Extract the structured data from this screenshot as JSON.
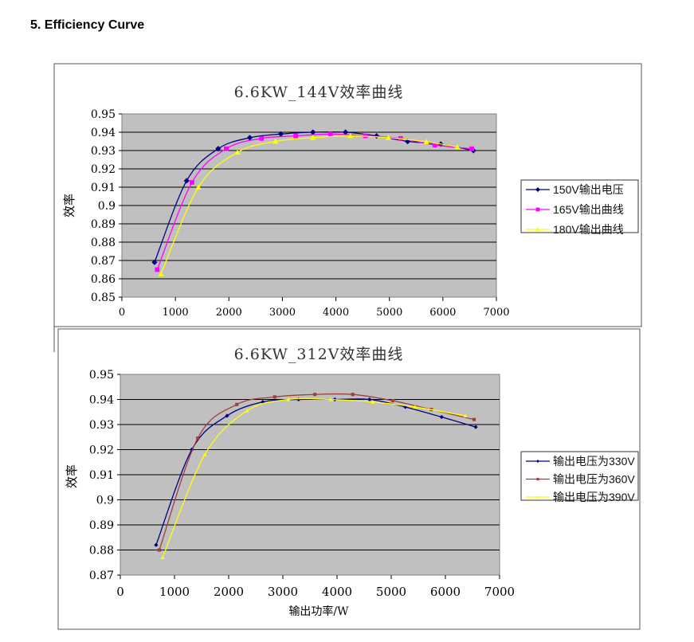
{
  "heading": "5. Efficiency Curve",
  "chart_data": [
    {
      "type": "line",
      "title": "6.6KW_144V效率曲线",
      "xlabel": "",
      "ylabel": "效率",
      "xlim": [
        0,
        7000
      ],
      "ylim": [
        0.85,
        0.95
      ],
      "xticks": [
        "0",
        "1000",
        "2000",
        "3000",
        "4000",
        "5000",
        "6000",
        "7000"
      ],
      "yticks": [
        "0.85",
        "0.86",
        "0.87",
        "0.88",
        "0.89",
        "0.9",
        "0.91",
        "0.92",
        "0.93",
        "0.94",
        "0.95"
      ],
      "grid": true,
      "legend_position": "right",
      "series": [
        {
          "name": "150V输出电压",
          "color": "#000080",
          "marker": "diamond",
          "x": [
            610,
            1210,
            1800,
            2390,
            2970,
            3570,
            4180,
            4760,
            5340,
            5960,
            6570
          ],
          "y": [
            0.869,
            0.9135,
            0.931,
            0.937,
            0.939,
            0.94,
            0.94,
            0.938,
            0.935,
            0.9335,
            0.93
          ]
        },
        {
          "name": "165V输出曲线",
          "color": "#ff00ff",
          "marker": "square",
          "x": [
            660,
            1310,
            1950,
            2610,
            3250,
            3900,
            4550,
            5210,
            5850,
            6540
          ],
          "y": [
            0.865,
            0.9126,
            0.931,
            0.9366,
            0.938,
            0.939,
            0.938,
            0.9366,
            0.933,
            0.931
          ]
        },
        {
          "name": "180V输出曲线",
          "color": "#ffff00",
          "marker": "triangle",
          "x": [
            730,
            1430,
            2160,
            2870,
            3570,
            4270,
            4980,
            5690,
            6270
          ],
          "y": [
            0.8626,
            0.91,
            0.929,
            0.935,
            0.937,
            0.938,
            0.937,
            0.9348,
            0.932
          ]
        }
      ]
    },
    {
      "type": "line",
      "title": "6.6KW_312V效率曲线",
      "xlabel": "输出功率/W",
      "ylabel": "效率",
      "xlim": [
        0,
        7000
      ],
      "ylim": [
        0.87,
        0.95
      ],
      "xticks": [
        "0",
        "1000",
        "2000",
        "3000",
        "4000",
        "5000",
        "6000",
        "7000"
      ],
      "yticks": [
        "0.87",
        "0.88",
        "0.89",
        "0.9",
        "0.91",
        "0.92",
        "0.93",
        "0.94",
        "0.95"
      ],
      "grid": true,
      "legend_position": "right",
      "series": [
        {
          "name": "输出电压为330V",
          "color": "#000080",
          "marker": "diamond",
          "x": [
            660,
            1320,
            1970,
            2630,
            3290,
            3960,
            4600,
            5260,
            5930,
            6560
          ],
          "y": [
            0.882,
            0.92,
            0.9335,
            0.939,
            0.94,
            0.94,
            0.94,
            0.937,
            0.933,
            0.929
          ]
        },
        {
          "name": "输出电压为360V",
          "color": "#a0403a",
          "marker": "square",
          "x": [
            720,
            1430,
            2150,
            2850,
            3590,
            4290,
            5030,
            5740,
            6530
          ],
          "y": [
            0.88,
            0.9246,
            0.938,
            0.941,
            0.942,
            0.942,
            0.9395,
            0.936,
            0.932
          ]
        },
        {
          "name": "输出电压为390V",
          "color": "#ffff00",
          "marker": "triangle",
          "x": [
            780,
            1560,
            2340,
            3100,
            3880,
            4660,
            5440,
            6370
          ],
          "y": [
            0.877,
            0.918,
            0.9355,
            0.94,
            0.94,
            0.939,
            0.937,
            0.9335
          ]
        }
      ]
    }
  ]
}
